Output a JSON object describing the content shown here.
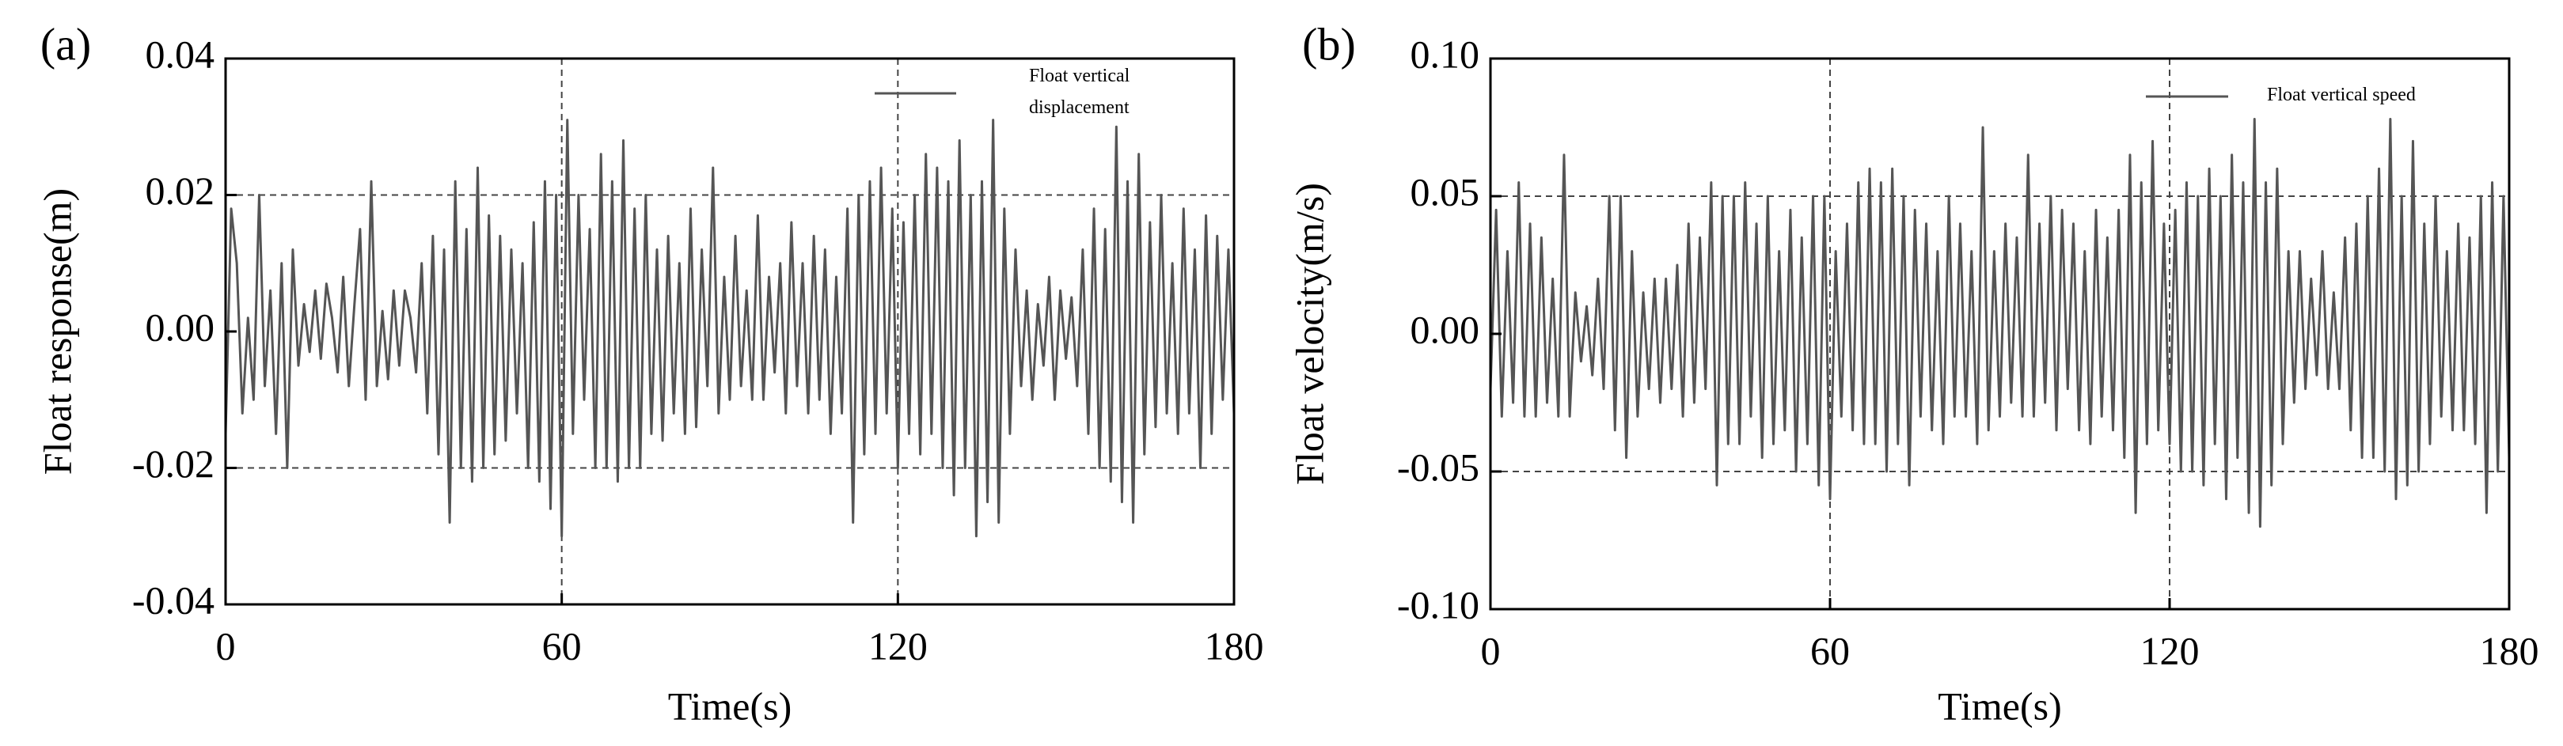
{
  "chart_data": [
    {
      "type": "line",
      "panel_label": "(a)",
      "xlabel": "Time(s)",
      "ylabel": "Float response(m)",
      "x": [
        0,
        1,
        2,
        3,
        4,
        5,
        6,
        7,
        8,
        9,
        10,
        11,
        12,
        13,
        14,
        15,
        16,
        17,
        18,
        19,
        20,
        21,
        22,
        23,
        24,
        25,
        26,
        27,
        28,
        29,
        30,
        31,
        32,
        33,
        34,
        35,
        36,
        37,
        38,
        39,
        40,
        41,
        42,
        43,
        44,
        45,
        46,
        47,
        48,
        49,
        50,
        51,
        52,
        53,
        54,
        55,
        56,
        57,
        58,
        59,
        60,
        61,
        62,
        63,
        64,
        65,
        66,
        67,
        68,
        69,
        70,
        71,
        72,
        73,
        74,
        75,
        76,
        77,
        78,
        79,
        80,
        81,
        82,
        83,
        84,
        85,
        86,
        87,
        88,
        89,
        90,
        91,
        92,
        93,
        94,
        95,
        96,
        97,
        98,
        99,
        100,
        101,
        102,
        103,
        104,
        105,
        106,
        107,
        108,
        109,
        110,
        111,
        112,
        113,
        114,
        115,
        116,
        117,
        118,
        119,
        120,
        121,
        122,
        123,
        124,
        125,
        126,
        127,
        128,
        129,
        130,
        131,
        132,
        133,
        134,
        135,
        136,
        137,
        138,
        139,
        140,
        141,
        142,
        143,
        144,
        145,
        146,
        147,
        148,
        149,
        150,
        151,
        152,
        153,
        154,
        155,
        156,
        157,
        158,
        159,
        160,
        161,
        162,
        163,
        164,
        165,
        166,
        167,
        168,
        169,
        170,
        171,
        172,
        173,
        174,
        175,
        176,
        177,
        178,
        179,
        180
      ],
      "series": [
        {
          "name": "Float vertical displacement",
          "color": "#555555",
          "values": [
            -0.015,
            0.018,
            0.01,
            -0.012,
            0.002,
            -0.01,
            0.02,
            -0.008,
            0.006,
            -0.015,
            0.01,
            -0.02,
            0.012,
            -0.005,
            0.004,
            -0.003,
            0.006,
            -0.004,
            0.007,
            0.002,
            -0.006,
            0.008,
            -0.008,
            0.004,
            0.015,
            -0.01,
            0.022,
            -0.008,
            0.003,
            -0.007,
            0.006,
            -0.005,
            0.006,
            0.002,
            -0.006,
            0.01,
            -0.012,
            0.014,
            -0.018,
            0.012,
            -0.028,
            0.022,
            -0.02,
            0.015,
            -0.022,
            0.024,
            -0.02,
            0.017,
            -0.018,
            0.014,
            -0.016,
            0.012,
            -0.012,
            0.01,
            -0.02,
            0.016,
            -0.022,
            0.022,
            -0.026,
            0.02,
            -0.03,
            0.031,
            -0.015,
            0.02,
            -0.01,
            0.015,
            -0.02,
            0.026,
            -0.02,
            0.022,
            -0.022,
            0.028,
            -0.02,
            0.018,
            -0.02,
            0.02,
            -0.015,
            0.012,
            -0.016,
            0.014,
            -0.012,
            0.01,
            -0.015,
            0.018,
            -0.014,
            0.012,
            -0.008,
            0.024,
            -0.012,
            0.008,
            -0.01,
            0.014,
            -0.008,
            0.006,
            -0.01,
            0.017,
            -0.01,
            0.008,
            -0.006,
            0.01,
            -0.012,
            0.016,
            -0.008,
            0.01,
            -0.012,
            0.014,
            -0.01,
            0.012,
            -0.015,
            0.008,
            -0.012,
            0.018,
            -0.028,
            0.02,
            -0.018,
            0.022,
            -0.015,
            0.024,
            -0.012,
            0.018,
            -0.02,
            0.016,
            -0.015,
            0.02,
            -0.018,
            0.026,
            -0.015,
            0.024,
            -0.02,
            0.022,
            -0.024,
            0.028,
            -0.02,
            0.02,
            -0.03,
            0.022,
            -0.025,
            0.031,
            -0.028,
            0.018,
            -0.015,
            0.012,
            -0.008,
            0.006,
            -0.01,
            0.004,
            -0.005,
            0.008,
            -0.01,
            0.006,
            -0.004,
            0.005,
            -0.008,
            0.012,
            -0.015,
            0.018,
            -0.02,
            0.015,
            -0.022,
            0.03,
            -0.025,
            0.022,
            -0.028,
            0.026,
            -0.018,
            0.016,
            -0.014,
            0.02,
            -0.012,
            0.01,
            -0.015,
            0.018,
            -0.012,
            0.012,
            -0.02,
            0.017,
            -0.015,
            0.014,
            -0.01,
            0.012,
            -0.012
          ]
        }
      ],
      "xlim": [
        0,
        180
      ],
      "xticks": [
        0,
        60,
        120,
        180
      ],
      "ylim": [
        -0.04,
        0.04
      ],
      "yticks": [
        -0.04,
        -0.02,
        {
          "value": 0,
          "label": "0.00"
        },
        0.02,
        0.04
      ],
      "hlines": [
        -0.02,
        0.02
      ],
      "vlines": [
        60,
        120
      ],
      "legend": "upper right"
    },
    {
      "type": "line",
      "panel_label": "(b)",
      "xlabel": "Time(s)",
      "ylabel": "Float velocity(m/s)",
      "x": [
        0,
        1,
        2,
        3,
        4,
        5,
        6,
        7,
        8,
        9,
        10,
        11,
        12,
        13,
        14,
        15,
        16,
        17,
        18,
        19,
        20,
        21,
        22,
        23,
        24,
        25,
        26,
        27,
        28,
        29,
        30,
        31,
        32,
        33,
        34,
        35,
        36,
        37,
        38,
        39,
        40,
        41,
        42,
        43,
        44,
        45,
        46,
        47,
        48,
        49,
        50,
        51,
        52,
        53,
        54,
        55,
        56,
        57,
        58,
        59,
        60,
        61,
        62,
        63,
        64,
        65,
        66,
        67,
        68,
        69,
        70,
        71,
        72,
        73,
        74,
        75,
        76,
        77,
        78,
        79,
        80,
        81,
        82,
        83,
        84,
        85,
        86,
        87,
        88,
        89,
        90,
        91,
        92,
        93,
        94,
        95,
        96,
        97,
        98,
        99,
        100,
        101,
        102,
        103,
        104,
        105,
        106,
        107,
        108,
        109,
        110,
        111,
        112,
        113,
        114,
        115,
        116,
        117,
        118,
        119,
        120,
        121,
        122,
        123,
        124,
        125,
        126,
        127,
        128,
        129,
        130,
        131,
        132,
        133,
        134,
        135,
        136,
        137,
        138,
        139,
        140,
        141,
        142,
        143,
        144,
        145,
        146,
        147,
        148,
        149,
        150,
        151,
        152,
        153,
        154,
        155,
        156,
        157,
        158,
        159,
        160,
        161,
        162,
        163,
        164,
        165,
        166,
        167,
        168,
        169,
        170,
        171,
        172,
        173,
        174,
        175,
        176,
        177,
        178,
        179,
        180
      ],
      "series": [
        {
          "name": "Float vertical speed",
          "color": "#555555",
          "values": [
            -0.02,
            0.045,
            -0.03,
            0.03,
            -0.025,
            0.055,
            -0.03,
            0.04,
            -0.03,
            0.035,
            -0.025,
            0.02,
            -0.03,
            0.065,
            -0.03,
            0.015,
            -0.01,
            0.01,
            -0.015,
            0.02,
            -0.02,
            0.05,
            -0.035,
            0.05,
            -0.045,
            0.03,
            -0.03,
            0.015,
            -0.02,
            0.02,
            -0.025,
            0.02,
            -0.02,
            0.025,
            -0.03,
            0.04,
            -0.025,
            0.035,
            -0.02,
            0.055,
            -0.055,
            0.05,
            -0.04,
            0.05,
            -0.04,
            0.055,
            -0.03,
            0.04,
            -0.045,
            0.05,
            -0.04,
            0.03,
            -0.035,
            0.045,
            -0.05,
            0.035,
            -0.04,
            0.05,
            -0.055,
            0.05,
            -0.06,
            0.03,
            -0.03,
            0.04,
            -0.035,
            0.055,
            -0.04,
            0.06,
            -0.04,
            0.055,
            -0.05,
            0.06,
            -0.04,
            0.05,
            -0.055,
            0.045,
            -0.03,
            0.04,
            -0.035,
            0.03,
            -0.04,
            0.05,
            -0.03,
            0.04,
            -0.03,
            0.03,
            -0.04,
            0.075,
            -0.035,
            0.03,
            -0.03,
            0.04,
            -0.025,
            0.035,
            -0.03,
            0.065,
            -0.03,
            0.04,
            -0.025,
            0.05,
            -0.035,
            0.045,
            -0.02,
            0.04,
            -0.035,
            0.03,
            -0.04,
            0.045,
            -0.03,
            0.035,
            -0.035,
            0.045,
            -0.045,
            0.065,
            -0.065,
            0.055,
            -0.04,
            0.07,
            -0.035,
            0.04,
            -0.04,
            0.045,
            -0.05,
            0.055,
            -0.05,
            0.05,
            -0.055,
            0.06,
            -0.04,
            0.05,
            -0.06,
            0.065,
            -0.045,
            0.055,
            -0.065,
            0.078,
            -0.07,
            0.055,
            -0.055,
            0.06,
            -0.04,
            0.03,
            -0.025,
            0.03,
            -0.02,
            0.02,
            -0.015,
            0.03,
            -0.02,
            0.015,
            -0.02,
            0.035,
            -0.035,
            0.04,
            -0.045,
            0.05,
            -0.045,
            0.06,
            -0.05,
            0.078,
            -0.06,
            0.05,
            -0.055,
            0.07,
            -0.05,
            0.04,
            -0.04,
            0.05,
            -0.03,
            0.03,
            -0.035,
            0.04,
            -0.035,
            0.035,
            -0.04,
            0.05,
            -0.065,
            0.055,
            -0.05,
            0.05,
            -0.045
          ]
        }
      ],
      "xlim": [
        0,
        180
      ],
      "xticks": [
        0,
        60,
        120,
        180
      ],
      "ylim": [
        -0.1,
        0.1
      ],
      "yticks": [
        {
          "value": -0.1,
          "label": "-0.10"
        },
        -0.05,
        {
          "value": 0,
          "label": "0.00"
        },
        0.05,
        {
          "value": 0.1,
          "label": "0.10"
        }
      ],
      "hlines": [
        -0.05,
        0.05
      ],
      "vlines": [
        60,
        120
      ],
      "legend": "upper right"
    }
  ]
}
